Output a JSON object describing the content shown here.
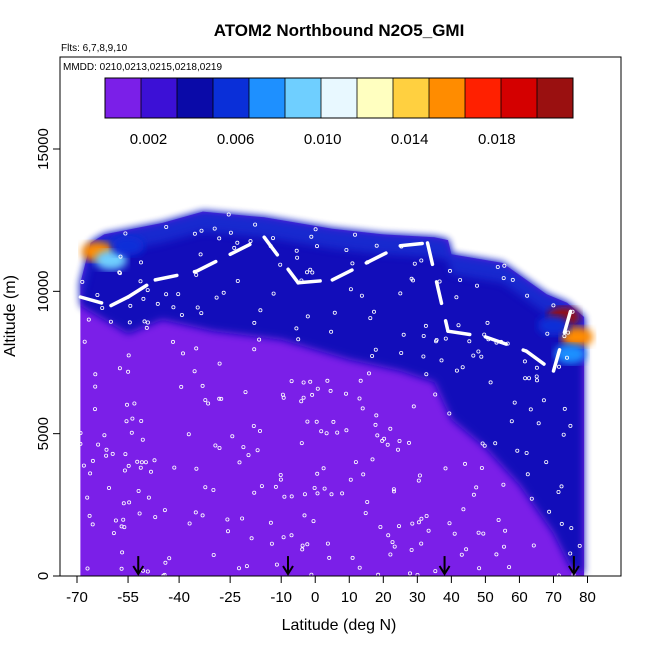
{
  "chart_data": {
    "type": "heatmap",
    "title": "ATOM2 Northbound N2O5_GMI",
    "flights_label": "Flts: 6,7,8,9,10",
    "dates_label": "MMDD: 0210,0213,0215,0218,0219",
    "xlabel": "Latitude (deg N)",
    "ylabel": "Altitude (m)",
    "xlim": [
      -70,
      82
    ],
    "ylim": [
      0,
      17500
    ],
    "x_ticks": [
      -70,
      -55,
      -40,
      -25,
      -10,
      0,
      10,
      20,
      30,
      40,
      50,
      60,
      70,
      80
    ],
    "y_ticks": [
      0,
      5000,
      10000,
      15000
    ],
    "colorbar": {
      "min": 0.0,
      "max": 0.0215,
      "tick_values": [
        0.002,
        0.006,
        0.01,
        0.014,
        0.018
      ],
      "tick_labels": [
        "0.002",
        "0.006",
        "0.010",
        "0.014",
        "0.018"
      ],
      "colors": [
        "#7b1fe8",
        "#3c10d6",
        "#0a0aa8",
        "#0a2fd8",
        "#1e90ff",
        "#6fcfff",
        "#e8f8ff",
        "#ffffc0",
        "#ffd040",
        "#ff8c00",
        "#ff2000",
        "#d40000",
        "#9a1010"
      ]
    },
    "background_value": 0.0005,
    "upper_boundary": [
      {
        "lat": -69,
        "alt": 10300
      },
      {
        "lat": -66,
        "alt": 11700
      },
      {
        "lat": -62,
        "alt": 12000
      },
      {
        "lat": -45,
        "alt": 12400
      },
      {
        "lat": -33,
        "alt": 12800
      },
      {
        "lat": -15,
        "alt": 12600
      },
      {
        "lat": 5,
        "alt": 12200
      },
      {
        "lat": 20,
        "alt": 12000
      },
      {
        "lat": 35,
        "alt": 11900
      },
      {
        "lat": 39,
        "alt": 11800
      },
      {
        "lat": 40,
        "alt": 11300
      },
      {
        "lat": 55,
        "alt": 11000
      },
      {
        "lat": 68,
        "alt": 9900
      },
      {
        "lat": 74,
        "alt": 9600
      },
      {
        "lat": 79,
        "alt": 9100
      }
    ],
    "blue_zone_bottom": [
      {
        "lat": -69,
        "alt": 9500
      },
      {
        "lat": -55,
        "alt": 8500
      },
      {
        "lat": -45,
        "alt": 9000
      },
      {
        "lat": -30,
        "alt": 8600
      },
      {
        "lat": -10,
        "alt": 8300
      },
      {
        "lat": 10,
        "alt": 7600
      },
      {
        "lat": 25,
        "alt": 7200
      },
      {
        "lat": 35,
        "alt": 6800
      },
      {
        "lat": 40,
        "alt": 5500
      },
      {
        "lat": 50,
        "alt": 4500
      },
      {
        "lat": 60,
        "alt": 3200
      },
      {
        "lat": 70,
        "alt": 1500
      },
      {
        "lat": 75,
        "alt": 300
      },
      {
        "lat": 79,
        "alt": 0
      }
    ],
    "hotspots": [
      {
        "lat": -64,
        "alt": 11400,
        "value": 0.016
      },
      {
        "lat": -60,
        "alt": 11100,
        "value": 0.009
      },
      {
        "lat": -55,
        "alt": 11600,
        "value": 0.006
      },
      {
        "lat": 73,
        "alt": 9100,
        "value": 0.02
      },
      {
        "lat": 77,
        "alt": 8400,
        "value": 0.016
      },
      {
        "lat": 75,
        "alt": 7800,
        "value": 0.008
      },
      {
        "lat": 70,
        "alt": 8800,
        "value": 0.006
      }
    ],
    "flight_track": [
      {
        "lat": -69,
        "alt": 9800
      },
      {
        "lat": -60,
        "alt": 9500
      },
      {
        "lat": -55,
        "alt": 9800
      },
      {
        "lat": -47,
        "alt": 10400
      },
      {
        "lat": -35,
        "alt": 10700
      },
      {
        "lat": -25,
        "alt": 11300
      },
      {
        "lat": -15,
        "alt": 11900
      },
      {
        "lat": -5,
        "alt": 10300
      },
      {
        "lat": 5,
        "alt": 10400
      },
      {
        "lat": 15,
        "alt": 11000
      },
      {
        "lat": 25,
        "alt": 11600
      },
      {
        "lat": 33,
        "alt": 11700
      },
      {
        "lat": 39,
        "alt": 8600
      },
      {
        "lat": 50,
        "alt": 8400
      },
      {
        "lat": 62,
        "alt": 7900
      },
      {
        "lat": 70,
        "alt": 7200
      },
      {
        "lat": 75,
        "alt": 9300
      }
    ],
    "profile_markers_lat": [
      -52,
      -8,
      38,
      76
    ],
    "grid": false,
    "legend": "colorbar-top"
  }
}
